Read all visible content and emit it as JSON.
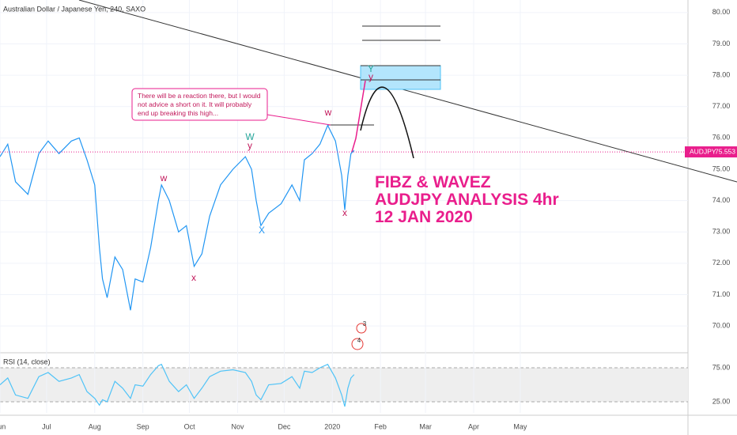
{
  "header": {
    "symbol_title": "Australian Dollar / Japanese Yen, 240, SAXO"
  },
  "chart_data": [
    {
      "type": "line",
      "color": "#2196f3",
      "x": [
        0,
        5,
        10,
        18,
        25,
        31,
        38,
        46,
        51,
        56,
        61,
        64,
        66,
        69,
        74,
        79,
        84,
        87,
        92,
        97,
        102,
        104,
        109,
        115,
        120,
        125,
        130,
        135,
        142,
        150,
        158,
        162,
        165,
        168,
        173,
        181,
        188,
        193,
        196,
        201,
        206,
        211,
        216,
        220,
        222,
        224,
        226,
        228
      ],
      "values": [
        75.4,
        75.8,
        74.6,
        74.2,
        75.5,
        75.9,
        75.5,
        75.9,
        76.0,
        75.3,
        74.5,
        72.5,
        71.5,
        70.9,
        72.2,
        71.8,
        70.5,
        71.5,
        71.4,
        72.5,
        74.0,
        74.5,
        74.0,
        73.0,
        73.2,
        71.9,
        72.3,
        73.5,
        74.5,
        75.0,
        75.4,
        75.0,
        74.0,
        73.2,
        73.6,
        73.9,
        74.5,
        74.0,
        75.3,
        75.5,
        75.8,
        76.4,
        75.9,
        74.8,
        73.7,
        74.8,
        75.5,
        75.6
      ],
      "xlim": [
        0,
        443
      ],
      "ylim": [
        69.17,
        80.4
      ],
      "yticks": [
        {
          "value": 70,
          "label": "70.00"
        },
        {
          "value": 71,
          "label": "71.00"
        },
        {
          "value": 72,
          "label": "72.00"
        },
        {
          "value": 73,
          "label": "73.00"
        },
        {
          "value": 74,
          "label": "74.00"
        },
        {
          "value": 75,
          "label": "75.00"
        },
        {
          "value": 76,
          "label": "76.00"
        },
        {
          "value": 77,
          "label": "77.00"
        },
        {
          "value": 78,
          "label": "78.00"
        },
        {
          "value": 79,
          "label": "79.00"
        },
        {
          "value": 80,
          "label": "80.00"
        }
      ],
      "grid": true,
      "last_price_symbol": "AUDJPY",
      "last_price": 75.553,
      "last_price_color": "#e91e8c",
      "annotations": [
        {
          "text": "w",
          "color": "#c2185b"
        },
        {
          "text": "x",
          "color": "#c2185b"
        },
        {
          "text": "W",
          "color": "#26a69a"
        },
        {
          "text": "y",
          "color": "#c2185b"
        },
        {
          "text": "X",
          "color": "#2196f3"
        },
        {
          "text": "w",
          "color": "#c2185b"
        },
        {
          "text": "x",
          "color": "#c2185b"
        },
        {
          "text": "Y",
          "color": "#26a69a"
        },
        {
          "text": "y",
          "color": "#c2185b"
        },
        {
          "text": "3",
          "color": "#333333"
        },
        {
          "text": "4",
          "color": "#333333"
        }
      ],
      "note": [
        "There will be a reaction there, but I would",
        "not advice a short on it. It will probably",
        "end up breaking this high..."
      ],
      "headline": [
        "FIBZ & WAVEZ",
        "AUDJPY ANALYSIS 4hr",
        "12 JAN 2020"
      ]
    },
    {
      "type": "line",
      "title": "RSI (14, close)",
      "color": "#4fc3f7",
      "x": [
        0,
        5,
        10,
        18,
        25,
        31,
        38,
        46,
        51,
        56,
        61,
        64,
        66,
        69,
        74,
        79,
        84,
        87,
        92,
        97,
        102,
        104,
        109,
        115,
        120,
        125,
        130,
        135,
        142,
        150,
        158,
        162,
        165,
        168,
        173,
        181,
        188,
        193,
        196,
        201,
        206,
        211,
        216,
        220,
        222,
        224,
        226,
        228
      ],
      "values": [
        50,
        60,
        35,
        30,
        62,
        68,
        55,
        60,
        65,
        40,
        30,
        20,
        28,
        25,
        55,
        45,
        30,
        50,
        48,
        65,
        78,
        80,
        55,
        40,
        50,
        30,
        45,
        62,
        70,
        72,
        68,
        55,
        35,
        28,
        50,
        52,
        62,
        45,
        70,
        68,
        75,
        80,
        60,
        35,
        18,
        45,
        60,
        65
      ],
      "xlim": [
        0,
        443
      ],
      "ylim": [
        8.7,
        92.4
      ],
      "yticks": [
        {
          "value": 25,
          "label": "25.00"
        },
        {
          "value": 75,
          "label": "75.00"
        }
      ],
      "xticks": [
        {
          "value": 0,
          "label": "Jun"
        },
        {
          "value": 30,
          "label": "Jul"
        },
        {
          "value": 61,
          "label": "Aug"
        },
        {
          "value": 92,
          "label": "Sep"
        },
        {
          "value": 122,
          "label": "Oct"
        },
        {
          "value": 153,
          "label": "Nov"
        },
        {
          "value": 183,
          "label": "Dec"
        },
        {
          "value": 214,
          "label": "2020"
        },
        {
          "value": 245,
          "label": "Feb"
        },
        {
          "value": 274,
          "label": "Mar"
        },
        {
          "value": 305,
          "label": "Apr"
        },
        {
          "value": 335,
          "label": "May"
        }
      ],
      "band_color": "#eeeeee"
    }
  ]
}
